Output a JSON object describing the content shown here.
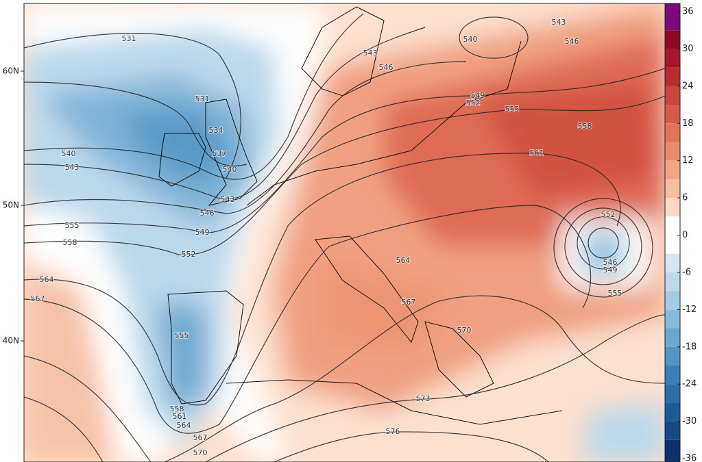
{
  "map": {
    "lat_labels": [
      "60N",
      "50N",
      "40N"
    ],
    "colorbar": {
      "ticks": [
        36,
        30,
        24,
        18,
        12,
        6,
        0,
        -6,
        -12,
        -18,
        -24,
        -30,
        -36
      ],
      "colors": [
        "#7b0a7a",
        "#8c0a26",
        "#a3162b",
        "#b82c32",
        "#c9443d",
        "#d65a49",
        "#e07358",
        "#e98b6c",
        "#f2a584",
        "#f8bea1",
        "#fcd7c2",
        "#ffffff",
        "#ffffff",
        "#d3e6f1",
        "#bdd9ea",
        "#a3cbe2",
        "#87badb",
        "#6aa8d1",
        "#4f95c5",
        "#3b80b9",
        "#2a6dab",
        "#1d5a9a",
        "#164886",
        "#0d3168"
      ]
    },
    "contour_labels": [
      "531",
      "531",
      "534",
      "537",
      "540",
      "543",
      "540",
      "543",
      "546",
      "549",
      "552",
      "555",
      "558",
      "564",
      "567",
      "555",
      "558",
      "561",
      "564",
      "567",
      "570",
      "573",
      "576",
      "570",
      "567",
      "564",
      "561",
      "558",
      "555",
      "552",
      "549",
      "546",
      "543",
      "540",
      "543",
      "546",
      "552",
      "546",
      "549",
      "555"
    ]
  }
}
